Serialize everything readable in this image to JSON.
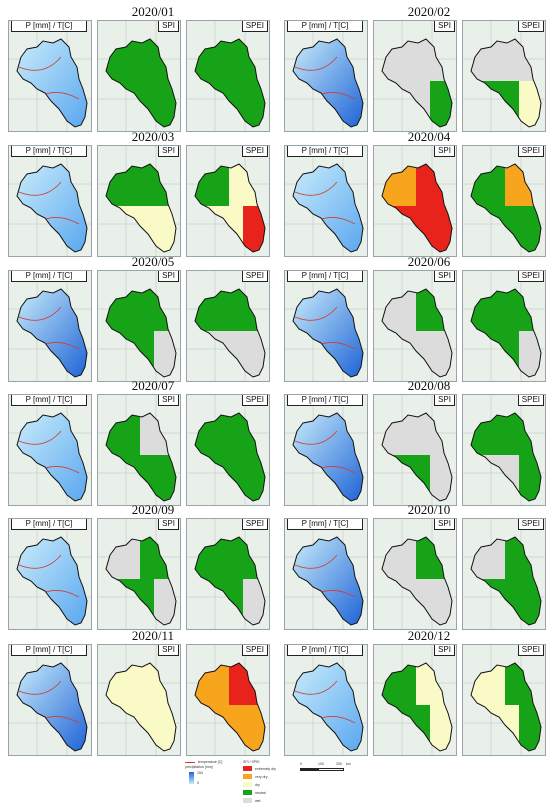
{
  "labels": {
    "p": "P [mm] / T[C]",
    "spi": "SPI",
    "spei": "SPEI"
  },
  "months": [
    {
      "title": "2020/01",
      "spi": [
        "g",
        "g",
        "g",
        "g"
      ],
      "spei": [
        "g",
        "g",
        "g",
        "g"
      ]
    },
    {
      "title": "2020/02",
      "spi": [
        "n",
        "n",
        "n",
        "g"
      ],
      "spei": [
        "n",
        "n",
        "g",
        "y"
      ]
    },
    {
      "title": "2020/03",
      "spi": [
        "g",
        "g",
        "y",
        "y"
      ],
      "spei": [
        "g",
        "y",
        "y",
        "r"
      ]
    },
    {
      "title": "2020/04",
      "spi": [
        "o",
        "r",
        "r",
        "r"
      ],
      "spei": [
        "g",
        "o",
        "g",
        "g"
      ]
    },
    {
      "title": "2020/05",
      "spi": [
        "g",
        "g",
        "g",
        "n"
      ],
      "spei": [
        "g",
        "g",
        "n",
        "n"
      ]
    },
    {
      "title": "2020/06",
      "spi": [
        "n",
        "g",
        "n",
        "n"
      ],
      "spei": [
        "g",
        "g",
        "g",
        "n"
      ]
    },
    {
      "title": "2020/07",
      "spi": [
        "g",
        "n",
        "g",
        "g"
      ],
      "spei": [
        "g",
        "g",
        "g",
        "g"
      ]
    },
    {
      "title": "2020/08",
      "spi": [
        "n",
        "n",
        "g",
        "n"
      ],
      "spei": [
        "g",
        "g",
        "n",
        "g"
      ]
    },
    {
      "title": "2020/09",
      "spi": [
        "n",
        "g",
        "g",
        "n"
      ],
      "spei": [
        "g",
        "g",
        "g",
        "n"
      ]
    },
    {
      "title": "2020/10",
      "spi": [
        "n",
        "g",
        "n",
        "n"
      ],
      "spei": [
        "n",
        "g",
        "g",
        "g"
      ]
    },
    {
      "title": "2020/11",
      "spi": [
        "y",
        "y",
        "y",
        "y"
      ],
      "spei": [
        "o",
        "r",
        "o",
        "o"
      ]
    },
    {
      "title": "2020/12",
      "spi": [
        "g",
        "y",
        "g",
        "y"
      ],
      "spei": [
        "y",
        "g",
        "y",
        "g"
      ]
    }
  ],
  "colors": {
    "g": "#17a317",
    "n": "#dcdcdc",
    "y": "#fafac6",
    "o": "#f7a51c",
    "r": "#e8231c",
    "precip_dark": "#1f64d6",
    "precip_light": "#c8ecfb",
    "temperature": "#d43b2c"
  },
  "legend": {
    "temperature": "temperature [C]",
    "precipitation": "precipitation [mm]",
    "precip_values": [
      "154",
      "0"
    ],
    "spi_title": "SPI / SPEI",
    "classes": [
      "extremely dry",
      "very dry",
      "dry",
      "neutral",
      "wet"
    ],
    "scale_ticks": [
      "0",
      "100",
      "200"
    ],
    "scale_unit": "km"
  }
}
